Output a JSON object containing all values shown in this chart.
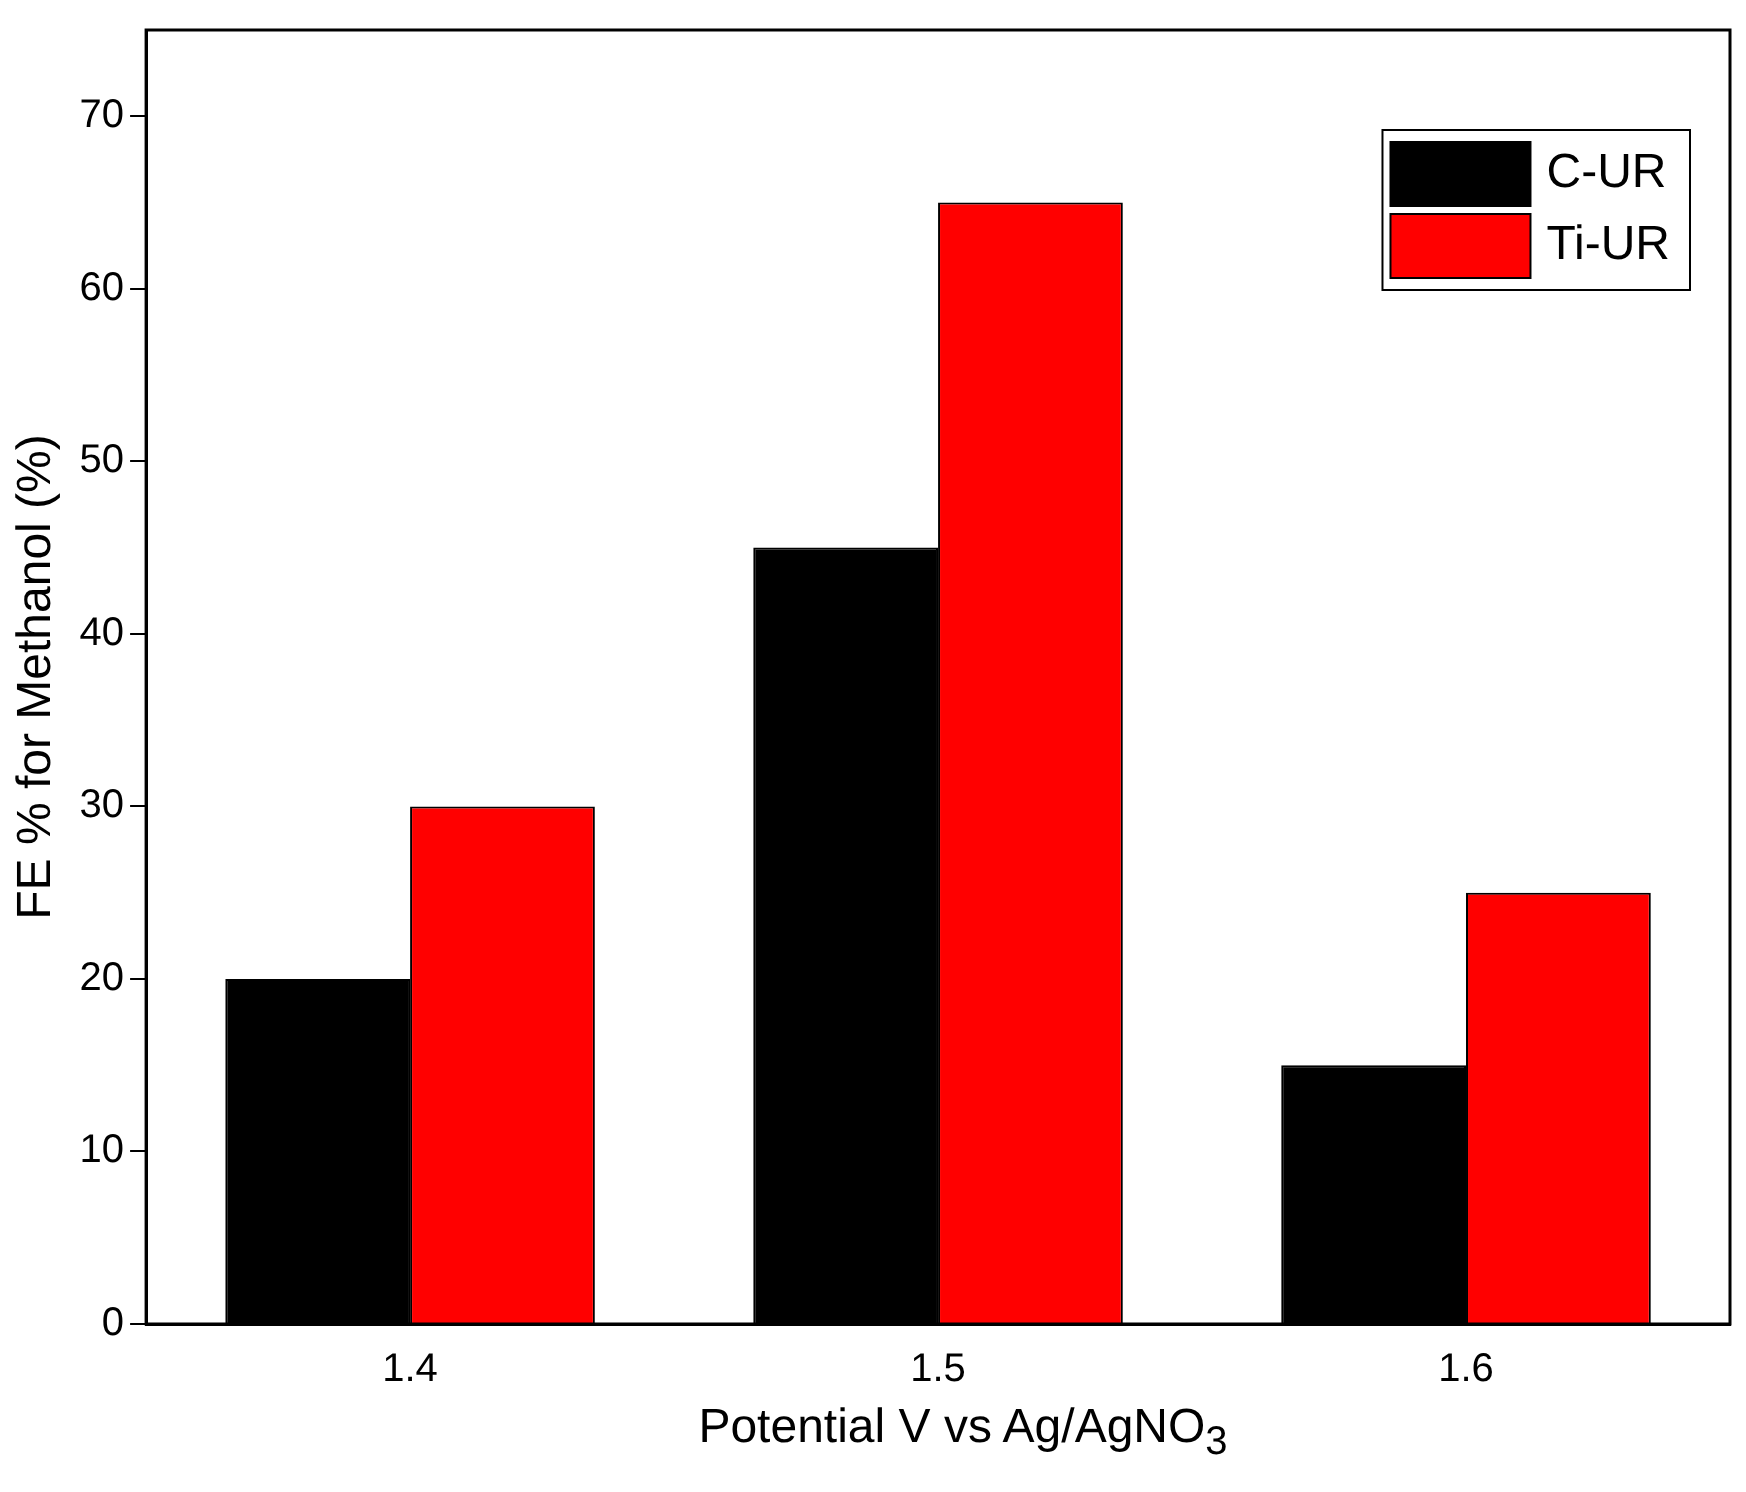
{
  "chart_data": {
    "type": "bar",
    "xlabel": "Potential V vs Ag/AgNO$_{3}$",
    "ylabel": "FE % for Methanol (%)",
    "categories": [
      "1.4",
      "1.5",
      "1.6"
    ],
    "series": [
      {
        "name": "C-UR",
        "color": "#000000",
        "values": [
          20,
          45,
          15
        ]
      },
      {
        "name": "Ti-UR",
        "color": "#ff0000",
        "values": [
          30,
          65,
          25
        ]
      }
    ],
    "ylim": [
      0,
      75
    ],
    "yticks": [
      0,
      10,
      20,
      30,
      40,
      50,
      60,
      70
    ],
    "grid": false,
    "legend": "top right"
  }
}
